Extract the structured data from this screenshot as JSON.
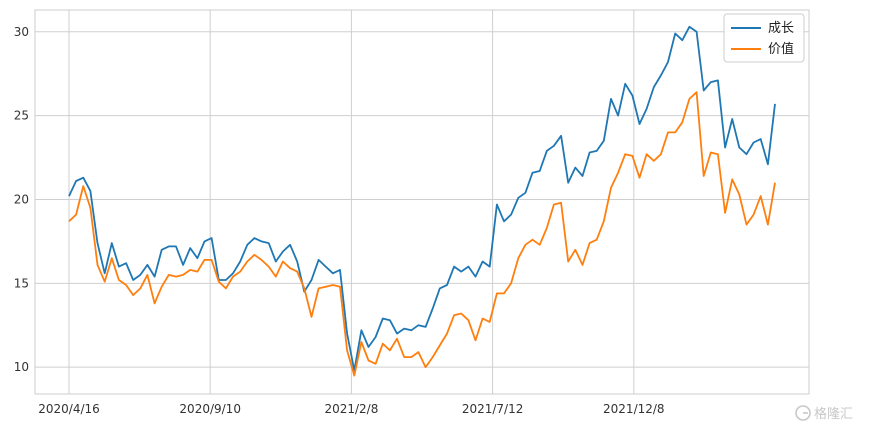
{
  "chart_data": {
    "type": "line",
    "title": "",
    "xlabel": "",
    "ylabel": "",
    "x_tick_labels": [
      "2020/4/16",
      "2020/9/10",
      "2021/2/8",
      "2021/7/12",
      "2021/12/8"
    ],
    "y_ticks": [
      10,
      15,
      20,
      25,
      30
    ],
    "ylim": [
      8.4,
      31.3
    ],
    "grid": true,
    "legend_position": "top-right",
    "series": [
      {
        "name": "成长",
        "color": "#1f77b4",
        "values": [
          20.2,
          21.1,
          21.3,
          20.5,
          17.4,
          15.6,
          17.4,
          16.0,
          16.2,
          15.2,
          15.5,
          16.1,
          15.4,
          17.0,
          17.2,
          17.2,
          16.1,
          17.1,
          16.5,
          17.5,
          17.7,
          15.2,
          15.2,
          15.6,
          16.3,
          17.3,
          17.7,
          17.5,
          17.4,
          16.3,
          16.9,
          17.3,
          16.3,
          14.5,
          15.2,
          16.4,
          16.0,
          15.6,
          15.8,
          12.0,
          9.8,
          12.2,
          11.2,
          11.8,
          12.9,
          12.8,
          12.0,
          12.3,
          12.2,
          12.5,
          12.4,
          13.5,
          14.7,
          14.9,
          16.0,
          15.7,
          16.0,
          15.4,
          16.3,
          16.0,
          19.7,
          18.7,
          19.1,
          20.1,
          20.4,
          21.6,
          21.7,
          22.9,
          23.2,
          23.8,
          21.0,
          21.9,
          21.4,
          22.8,
          22.9,
          23.5,
          26.0,
          25.0,
          26.9,
          26.2,
          24.5,
          25.4,
          26.7,
          27.4,
          28.2,
          29.9,
          29.5,
          30.3,
          30.0,
          26.5,
          27.0,
          27.1,
          23.1,
          24.8,
          23.1,
          22.7,
          23.4,
          23.6,
          22.1,
          25.7
        ]
      },
      {
        "name": "价值",
        "color": "#ff7f0e",
        "values": [
          18.7,
          19.1,
          20.8,
          19.5,
          16.1,
          15.1,
          16.5,
          15.2,
          14.9,
          14.3,
          14.7,
          15.5,
          13.8,
          14.8,
          15.5,
          15.4,
          15.5,
          15.8,
          15.7,
          16.4,
          16.4,
          15.1,
          14.7,
          15.4,
          15.7,
          16.3,
          16.7,
          16.4,
          16.0,
          15.4,
          16.3,
          15.9,
          15.7,
          14.7,
          13.0,
          14.7,
          14.8,
          14.9,
          14.8,
          11.0,
          9.5,
          11.5,
          10.4,
          10.2,
          11.4,
          11.0,
          11.7,
          10.6,
          10.6,
          10.9,
          10.0,
          10.6,
          11.3,
          12.0,
          13.1,
          13.2,
          12.8,
          11.6,
          12.9,
          12.7,
          14.4,
          14.4,
          15.0,
          16.5,
          17.3,
          17.6,
          17.3,
          18.3,
          19.7,
          19.8,
          16.3,
          17.0,
          16.1,
          17.4,
          17.6,
          18.7,
          20.7,
          21.6,
          22.7,
          22.6,
          21.3,
          22.7,
          22.3,
          22.7,
          24.0,
          24.0,
          24.6,
          26.0,
          26.4,
          21.4,
          22.8,
          22.7,
          19.2,
          21.2,
          20.3,
          18.5,
          19.1,
          20.2,
          18.5,
          21.0
        ]
      }
    ]
  },
  "watermark": {
    "text": "格隆汇",
    "icon": "logo-g-icon"
  }
}
